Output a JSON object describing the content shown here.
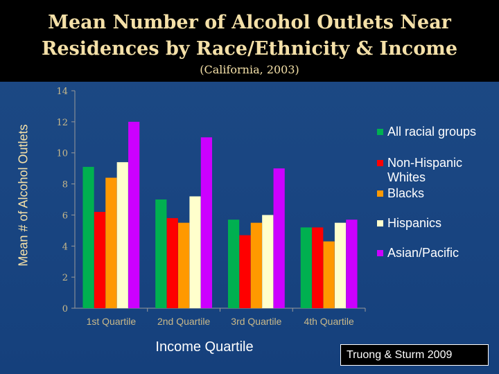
{
  "title": "Mean Number of Alcohol Outlets Near Residences by Race/Ethnicity & Income",
  "subtitle": "(California, 2003)",
  "source": "Truong & Sturm 2009",
  "colors": {
    "background": "#1a4682",
    "title_text": "#f4e0a8",
    "axis_text": "#c9b98a",
    "axis_line": "#9a9a9a"
  },
  "chart_data": {
    "type": "bar",
    "title": "Mean Number of Alcohol Outlets Near Residences by Race/Ethnicity & Income",
    "subtitle": "(California, 2003)",
    "xlabel": "Income Quartile",
    "ylabel": "Mean # of Alcohol Outlets",
    "categories": [
      "1st Quartile",
      "2nd Quartile",
      "3rd Quartile",
      "4th Quartile"
    ],
    "ylim": [
      0,
      14
    ],
    "yticks": [
      0,
      2,
      4,
      6,
      8,
      10,
      12,
      14
    ],
    "grid": false,
    "legend_position": "right",
    "series": [
      {
        "name": "All racial groups",
        "color": "#00b050",
        "values": [
          9.1,
          7.0,
          5.7,
          5.2
        ]
      },
      {
        "name": "Non-Hispanic Whites",
        "color": "#ff0000",
        "values": [
          6.2,
          5.8,
          4.7,
          5.2
        ]
      },
      {
        "name": "Blacks",
        "color": "#ff9900",
        "values": [
          8.4,
          5.5,
          5.5,
          4.3
        ]
      },
      {
        "name": "Hispanics",
        "color": "#ffffcc",
        "values": [
          9.4,
          7.2,
          6.0,
          5.5
        ]
      },
      {
        "name": "Asian/Pacific",
        "color": "#cc00ff",
        "values": [
          12.0,
          11.0,
          9.0,
          5.7
        ]
      }
    ]
  }
}
